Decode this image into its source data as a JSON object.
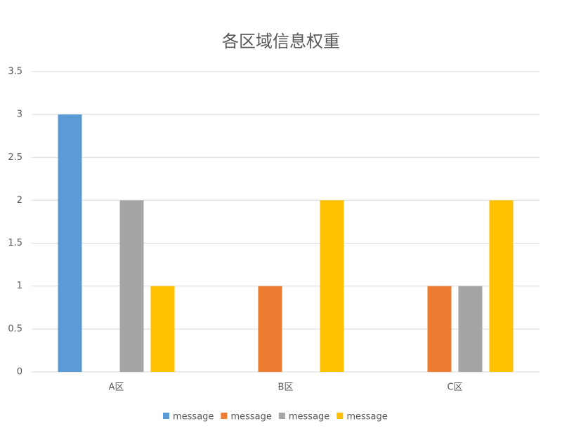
{
  "chart_data": {
    "type": "bar",
    "title": "各区域信息权重",
    "categories": [
      "A区",
      "B区",
      "C区"
    ],
    "series": [
      {
        "name": "message",
        "color": "#5b9bd5",
        "values": [
          3,
          0,
          0
        ]
      },
      {
        "name": "message",
        "color": "#ed7d31",
        "values": [
          0,
          1,
          1
        ]
      },
      {
        "name": "message",
        "color": "#a5a5a5",
        "values": [
          2,
          0,
          1
        ]
      },
      {
        "name": "message",
        "color": "#ffc000",
        "values": [
          1,
          2,
          2
        ]
      }
    ],
    "ylim": [
      0,
      3.5
    ],
    "yticks": [
      0,
      0.5,
      1,
      1.5,
      2,
      2.5,
      3,
      3.5
    ],
    "grid": true,
    "legend": "bottom"
  }
}
